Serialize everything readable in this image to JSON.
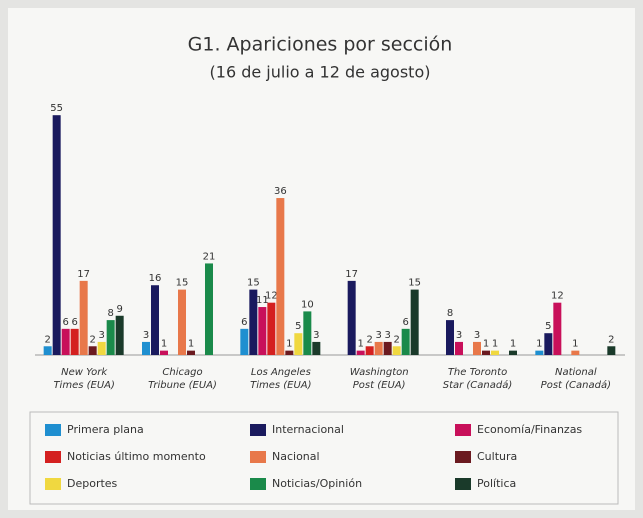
{
  "chart_data": {
    "type": "bar",
    "title": "G1. Apariciones por sección",
    "subtitle": "(16 de julio a 12 de agosto)",
    "categories": [
      "New York Times (EUA)",
      "Chicago Tribune (EUA)",
      "Los Angeles Times (EUA)",
      "Washington Post (EUA)",
      "The Toronto Star (Canadá)",
      "National Post (Canadá)"
    ],
    "series": [
      {
        "name": "Primera plana",
        "color": "#1f8fd0",
        "values": [
          2,
          3,
          6,
          null,
          null,
          1
        ]
      },
      {
        "name": "Internacional",
        "color": "#1a1a5e",
        "values": [
          55,
          16,
          15,
          17,
          8,
          5
        ]
      },
      {
        "name": "Economía/Finanzas",
        "color": "#c8105a",
        "values": [
          6,
          1,
          11,
          1,
          3,
          12
        ]
      },
      {
        "name": "Noticias último momento",
        "color": "#d42020",
        "values": [
          6,
          null,
          12,
          2,
          null,
          null
        ]
      },
      {
        "name": "Nacional",
        "color": "#e8784a",
        "values": [
          17,
          15,
          36,
          3,
          3,
          1
        ]
      },
      {
        "name": "Cultura",
        "color": "#6b1a20",
        "values": [
          2,
          1,
          1,
          3,
          1,
          null
        ]
      },
      {
        "name": "Deportes",
        "color": "#f0d840",
        "values": [
          3,
          null,
          5,
          2,
          1,
          null
        ]
      },
      {
        "name": "Noticias/Opinión",
        "color": "#1a8a4a",
        "values": [
          8,
          21,
          10,
          6,
          null,
          null
        ]
      },
      {
        "name": "Política",
        "color": "#1a3a2a",
        "values": [
          9,
          null,
          3,
          15,
          1,
          2
        ]
      }
    ]
  }
}
